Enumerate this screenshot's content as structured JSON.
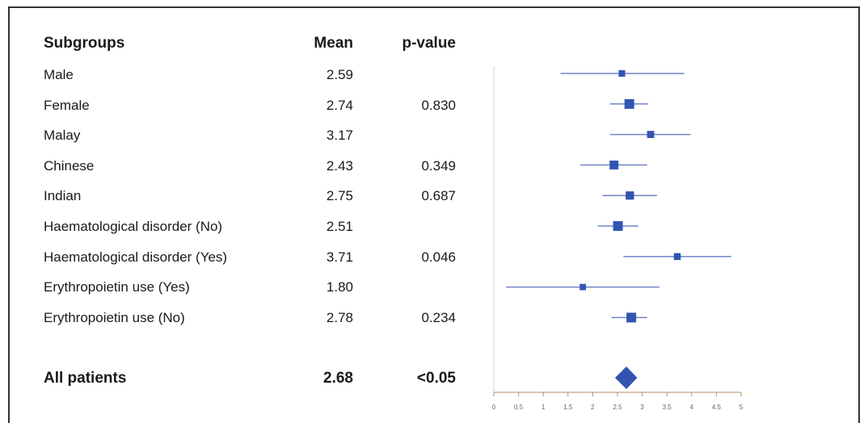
{
  "header": {
    "subgroups": "Subgroups",
    "mean": "Mean",
    "pvalue": "p-value"
  },
  "rows": [
    {
      "label": "Male",
      "mean": "2.59",
      "pvalue": ""
    },
    {
      "label": "Female",
      "mean": "2.74",
      "pvalue": "0.830"
    },
    {
      "label": "Malay",
      "mean": "3.17",
      "pvalue": ""
    },
    {
      "label": "Chinese",
      "mean": "2.43",
      "pvalue": "0.349"
    },
    {
      "label": "Indian",
      "mean": "2.75",
      "pvalue": "0.687"
    },
    {
      "label": "Haematological disorder (No)",
      "mean": "2.51",
      "pvalue": ""
    },
    {
      "label": "Haematological disorder (Yes)",
      "mean": "3.71",
      "pvalue": "0.046"
    },
    {
      "label": "Erythropoietin use (Yes)",
      "mean": "1.80",
      "pvalue": ""
    },
    {
      "label": "Erythropoietin use (No)",
      "mean": "2.78",
      "pvalue": "0.234"
    }
  ],
  "overall": {
    "label": "All patients",
    "mean": "2.68",
    "pvalue": "<0.05"
  },
  "chart_data": {
    "type": "forest",
    "xlim": [
      0,
      5
    ],
    "ticks": [
      "0",
      "0.5",
      "1",
      "1.5",
      "2",
      "2.5",
      "3",
      "3.5",
      "4",
      "4.5",
      "5"
    ],
    "point_color": "#3355b0",
    "line_color": "#6f86c8",
    "series": [
      {
        "name": "Male",
        "mean": 2.59,
        "low": 1.35,
        "high": 3.85,
        "weight": 0.45
      },
      {
        "name": "Female",
        "mean": 2.74,
        "low": 2.35,
        "high": 3.12,
        "weight": 1.0
      },
      {
        "name": "Malay",
        "mean": 3.17,
        "low": 2.35,
        "high": 3.98,
        "weight": 0.55
      },
      {
        "name": "Chinese",
        "mean": 2.43,
        "low": 1.75,
        "high": 3.1,
        "weight": 0.85
      },
      {
        "name": "Indian",
        "mean": 2.75,
        "low": 2.2,
        "high": 3.3,
        "weight": 0.75
      },
      {
        "name": "Haematological disorder (No)",
        "mean": 2.51,
        "low": 2.1,
        "high": 2.92,
        "weight": 1.0
      },
      {
        "name": "Haematological disorder (Yes)",
        "mean": 3.71,
        "low": 2.62,
        "high": 4.8,
        "weight": 0.5
      },
      {
        "name": "Erythropoietin use (Yes)",
        "mean": 1.8,
        "low": 0.25,
        "high": 3.35,
        "weight": 0.4
      },
      {
        "name": "Erythropoietin use (No)",
        "mean": 2.78,
        "low": 2.38,
        "high": 3.1,
        "weight": 1.0
      }
    ],
    "overall": {
      "name": "All patients",
      "mean": 2.68,
      "low": 2.45,
      "high": 2.9
    }
  }
}
